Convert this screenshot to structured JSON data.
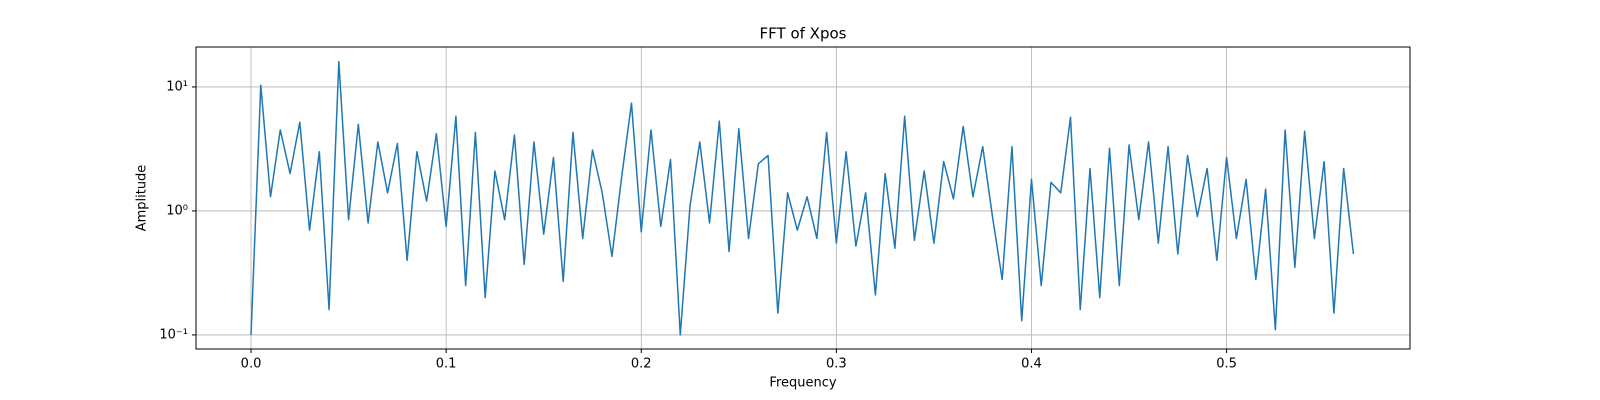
{
  "chart_data": {
    "type": "line",
    "title": "FFT of Xpos",
    "x_label": "Frequency",
    "y_label": "Amplitude",
    "x": [
      0,
      0.005,
      0.01,
      0.015,
      0.02,
      0.025,
      0.03,
      0.035,
      0.04,
      0.045,
      0.05,
      0.055,
      0.06,
      0.065,
      0.07,
      0.075,
      0.08,
      0.085,
      0.09,
      0.095,
      0.1,
      0.105,
      0.11,
      0.115,
      0.12,
      0.125,
      0.13,
      0.135,
      0.14,
      0.145,
      0.15,
      0.155,
      0.16,
      0.165,
      0.17,
      0.175,
      0.18,
      0.185,
      0.19,
      0.195,
      0.2,
      0.205,
      0.21,
      0.215,
      0.22,
      0.225,
      0.23,
      0.235,
      0.24,
      0.245,
      0.25,
      0.255,
      0.26,
      0.265,
      0.27,
      0.275,
      0.28,
      0.285,
      0.29,
      0.295,
      0.3,
      0.305,
      0.31,
      0.315,
      0.32,
      0.325,
      0.33,
      0.335,
      0.34,
      0.345,
      0.35,
      0.355,
      0.36,
      0.365,
      0.37,
      0.375,
      0.38,
      0.385,
      0.39,
      0.395,
      0.4,
      0.405,
      0.41,
      0.415,
      0.42,
      0.425,
      0.43,
      0.435,
      0.44,
      0.445,
      0.45,
      0.455,
      0.46,
      0.465,
      0.47,
      0.475,
      0.48,
      0.485,
      0.49,
      0.495,
      0.5,
      0.505,
      0.51,
      0.515,
      0.52,
      0.525,
      0.53,
      0.535,
      0.54,
      0.545,
      0.55,
      0.555,
      0.56,
      0.565
    ],
    "series": [
      {
        "color": "#1f77b4",
        "values": [
          0.1,
          10.3,
          1.3,
          4.5,
          2.0,
          5.2,
          0.7,
          3.0,
          0.16,
          16,
          0.85,
          5.0,
          0.8,
          3.6,
          1.4,
          3.5,
          0.4,
          3.0,
          1.2,
          4.2,
          0.75,
          5.8,
          0.25,
          4.3,
          0.2,
          2.1,
          0.85,
          4.1,
          0.37,
          3.6,
          0.65,
          2.7,
          0.27,
          4.3,
          0.6,
          3.1,
          1.4,
          0.43,
          1.9,
          7.4,
          0.68,
          4.5,
          0.75,
          2.6,
          0.1,
          1.1,
          3.6,
          0.8,
          5.3,
          0.47,
          4.6,
          0.6,
          2.4,
          2.8,
          0.15,
          1.4,
          0.7,
          1.3,
          0.6,
          4.3,
          0.55,
          3.0,
          0.52,
          1.4,
          0.21,
          2.0,
          0.5,
          5.8,
          0.58,
          2.1,
          0.55,
          2.5,
          1.25,
          4.8,
          1.3,
          3.3,
          0.9,
          0.28,
          3.3,
          0.13,
          1.8,
          0.25,
          1.7,
          1.4,
          5.7,
          0.16,
          2.2,
          0.2,
          3.2,
          0.25,
          3.4,
          0.85,
          3.6,
          0.55,
          3.3,
          0.45,
          2.8,
          0.9,
          2.2,
          0.4,
          2.7,
          0.6,
          1.8,
          0.28,
          1.5,
          0.11,
          4.5,
          0.35,
          4.4,
          0.6,
          2.5,
          0.15,
          2.2,
          0.45
        ]
      }
    ],
    "xlim": [
      -0.0282,
      0.594
    ],
    "ylim": [
      0.077,
      21.0
    ],
    "log_y": true,
    "grid": true,
    "xticks": [
      {
        "value": 0,
        "label": "0.0"
      },
      0.1,
      0.2,
      0.3,
      0.4,
      0.5
    ],
    "yticks": [
      {
        "value": 0.1,
        "label": "10⁻¹"
      },
      {
        "value": 1,
        "label": "10⁰"
      },
      {
        "value": 10,
        "label": "10¹"
      }
    ]
  }
}
